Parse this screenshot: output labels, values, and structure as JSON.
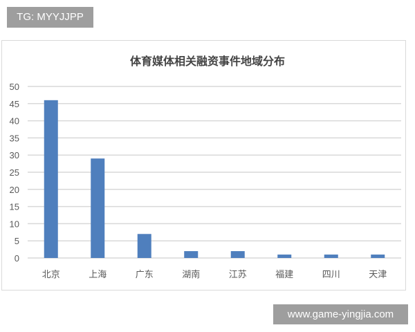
{
  "watermarks": {
    "top_left": "TG: MYYJJPP",
    "bottom_right": "www.game-yingjia.com"
  },
  "chart_data": {
    "type": "bar",
    "title": "体育媒体相关融资事件地域分布",
    "categories": [
      "北京",
      "上海",
      "广东",
      "湖南",
      "江苏",
      "福建",
      "四川",
      "天津"
    ],
    "values": [
      46,
      29,
      7,
      2,
      2,
      1,
      1,
      1
    ],
    "xlabel": "",
    "ylabel": "",
    "ylim": [
      0,
      50
    ],
    "yticks": [
      0,
      5,
      10,
      15,
      20,
      25,
      30,
      35,
      40,
      45,
      50
    ],
    "grid": true,
    "legend": "none",
    "bar_color": "#4f7fbd"
  }
}
